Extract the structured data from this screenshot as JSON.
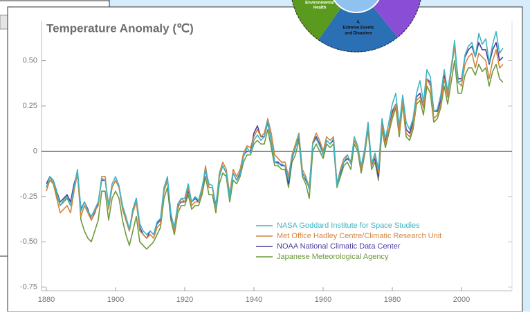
{
  "diagram": {
    "segment_left": [
      "Environmental",
      "Health"
    ],
    "segment_bottom": [
      "4.",
      "Extreme Events",
      "and Disasters"
    ]
  },
  "chart_data": {
    "type": "line",
    "title": "Temperature Anomaly (℃)",
    "x": [
      1880,
      1881,
      1882,
      1883,
      1884,
      1885,
      1886,
      1887,
      1888,
      1889,
      1890,
      1891,
      1892,
      1893,
      1894,
      1895,
      1896,
      1897,
      1898,
      1899,
      1900,
      1901,
      1902,
      1903,
      1904,
      1905,
      1906,
      1907,
      1908,
      1909,
      1910,
      1911,
      1912,
      1913,
      1914,
      1915,
      1916,
      1917,
      1918,
      1919,
      1920,
      1921,
      1922,
      1923,
      1924,
      1925,
      1926,
      1927,
      1928,
      1929,
      1930,
      1931,
      1932,
      1933,
      1934,
      1935,
      1936,
      1937,
      1938,
      1939,
      1940,
      1941,
      1942,
      1943,
      1944,
      1945,
      1946,
      1947,
      1948,
      1949,
      1950,
      1951,
      1952,
      1953,
      1954,
      1955,
      1956,
      1957,
      1958,
      1959,
      1960,
      1961,
      1962,
      1963,
      1964,
      1965,
      1966,
      1967,
      1968,
      1969,
      1970,
      1971,
      1972,
      1973,
      1974,
      1975,
      1976,
      1977,
      1978,
      1979,
      1980,
      1981,
      1982,
      1983,
      1984,
      1985,
      1986,
      1987,
      1988,
      1989,
      1990,
      1991,
      1992,
      1993,
      1994,
      1995,
      1996,
      1997,
      1998,
      1999,
      2000,
      2001,
      2002,
      2003,
      2004,
      2005,
      2006,
      2007,
      2008,
      2009,
      2010,
      2011,
      2012
    ],
    "series": [
      {
        "name": "NASA Goddard Institute for Space Studies",
        "color": "#3fb4c4",
        "values": [
          -0.2,
          -0.14,
          -0.16,
          -0.22,
          -0.3,
          -0.27,
          -0.25,
          -0.3,
          -0.2,
          -0.1,
          -0.33,
          -0.28,
          -0.33,
          -0.36,
          -0.32,
          -0.28,
          -0.15,
          -0.16,
          -0.3,
          -0.18,
          -0.14,
          -0.19,
          -0.3,
          -0.36,
          -0.43,
          -0.32,
          -0.26,
          -0.4,
          -0.44,
          -0.46,
          -0.44,
          -0.46,
          -0.39,
          -0.37,
          -0.2,
          -0.14,
          -0.35,
          -0.42,
          -0.29,
          -0.26,
          -0.26,
          -0.18,
          -0.28,
          -0.25,
          -0.27,
          -0.2,
          -0.1,
          -0.18,
          -0.19,
          -0.31,
          -0.14,
          -0.08,
          -0.12,
          -0.26,
          -0.12,
          -0.16,
          -0.13,
          -0.03,
          0.02,
          -0.01,
          0.06,
          0.09,
          0.06,
          0.08,
          0.17,
          0.06,
          -0.06,
          -0.07,
          -0.07,
          -0.08,
          -0.16,
          -0.03,
          0.02,
          0.09,
          -0.13,
          -0.15,
          -0.21,
          0.04,
          0.07,
          0.03,
          -0.02,
          0.06,
          0.04,
          0.07,
          -0.19,
          -0.11,
          -0.06,
          -0.02,
          -0.07,
          0.08,
          0.03,
          -0.08,
          0.01,
          0.16,
          -0.07,
          -0.01,
          -0.1,
          0.18,
          0.07,
          0.16,
          0.26,
          0.32,
          0.14,
          0.31,
          0.16,
          0.12,
          0.18,
          0.32,
          0.39,
          0.27,
          0.45,
          0.41,
          0.22,
          0.23,
          0.31,
          0.45,
          0.33,
          0.46,
          0.61,
          0.38,
          0.39,
          0.53,
          0.58,
          0.6,
          0.52,
          0.65,
          0.59,
          0.62,
          0.49,
          0.59,
          0.66,
          0.54,
          0.57
        ]
      },
      {
        "name": "Met Office Hadley Centre/Climatic Research Unit",
        "color": "#d4843c",
        "values": [
          -0.22,
          -0.16,
          -0.18,
          -0.26,
          -0.34,
          -0.32,
          -0.3,
          -0.34,
          -0.22,
          -0.12,
          -0.36,
          -0.3,
          -0.34,
          -0.38,
          -0.33,
          -0.3,
          -0.14,
          -0.14,
          -0.32,
          -0.2,
          -0.16,
          -0.2,
          -0.32,
          -0.38,
          -0.44,
          -0.34,
          -0.28,
          -0.44,
          -0.46,
          -0.48,
          -0.46,
          -0.48,
          -0.42,
          -0.4,
          -0.22,
          -0.16,
          -0.34,
          -0.44,
          -0.32,
          -0.26,
          -0.28,
          -0.2,
          -0.3,
          -0.28,
          -0.28,
          -0.22,
          -0.08,
          -0.2,
          -0.2,
          -0.32,
          -0.12,
          -0.06,
          -0.1,
          -0.24,
          -0.1,
          -0.14,
          -0.1,
          -0.01,
          0.03,
          0.02,
          0.08,
          0.12,
          0.08,
          0.1,
          0.18,
          0.1,
          -0.02,
          -0.04,
          -0.06,
          -0.06,
          -0.14,
          -0.02,
          0.04,
          0.1,
          -0.1,
          -0.14,
          -0.2,
          0.05,
          0.1,
          0.06,
          0.0,
          0.08,
          0.06,
          0.08,
          -0.18,
          -0.1,
          -0.04,
          -0.02,
          -0.06,
          0.06,
          0.02,
          -0.1,
          0.0,
          0.14,
          -0.08,
          -0.02,
          -0.12,
          0.14,
          0.04,
          0.12,
          0.2,
          0.26,
          0.1,
          0.28,
          0.1,
          0.08,
          0.14,
          0.28,
          0.3,
          0.24,
          0.4,
          0.36,
          0.18,
          0.2,
          0.26,
          0.4,
          0.3,
          0.44,
          0.58,
          0.38,
          0.36,
          0.48,
          0.52,
          0.54,
          0.46,
          0.54,
          0.52,
          0.5,
          0.4,
          0.5,
          0.56,
          0.46,
          0.48
        ]
      },
      {
        "name": "NOAA National Climatic Data Center",
        "color": "#4a3c9e",
        "values": [
          -0.18,
          -0.14,
          -0.16,
          -0.22,
          -0.28,
          -0.26,
          -0.24,
          -0.28,
          -0.18,
          -0.12,
          -0.32,
          -0.28,
          -0.32,
          -0.38,
          -0.34,
          -0.28,
          -0.16,
          -0.16,
          -0.3,
          -0.2,
          -0.16,
          -0.2,
          -0.3,
          -0.38,
          -0.44,
          -0.32,
          -0.26,
          -0.42,
          -0.46,
          -0.48,
          -0.44,
          -0.46,
          -0.4,
          -0.38,
          -0.22,
          -0.16,
          -0.36,
          -0.42,
          -0.3,
          -0.28,
          -0.28,
          -0.22,
          -0.28,
          -0.26,
          -0.28,
          -0.22,
          -0.1,
          -0.2,
          -0.2,
          -0.3,
          -0.14,
          -0.08,
          -0.12,
          -0.24,
          -0.12,
          -0.16,
          -0.12,
          -0.02,
          0.0,
          0.0,
          0.1,
          0.14,
          0.08,
          0.08,
          0.16,
          0.06,
          -0.06,
          -0.06,
          -0.08,
          -0.08,
          -0.18,
          -0.04,
          0.02,
          0.08,
          -0.12,
          -0.16,
          -0.2,
          0.04,
          0.08,
          0.04,
          -0.02,
          0.06,
          0.04,
          0.06,
          -0.18,
          -0.12,
          -0.06,
          -0.04,
          -0.06,
          0.06,
          0.02,
          -0.1,
          0.0,
          0.14,
          -0.08,
          -0.04,
          -0.14,
          0.16,
          0.06,
          0.12,
          0.22,
          0.26,
          0.12,
          0.3,
          0.12,
          0.1,
          0.16,
          0.3,
          0.32,
          0.24,
          0.4,
          0.38,
          0.22,
          0.22,
          0.28,
          0.42,
          0.3,
          0.46,
          0.58,
          0.4,
          0.4,
          0.52,
          0.56,
          0.58,
          0.52,
          0.6,
          0.56,
          0.56,
          0.48,
          0.56,
          0.6,
          0.5,
          0.52
        ]
      },
      {
        "name": "Japanese Meteorological Agency",
        "color": "#6b9a3c",
        "values": [
          -0.2,
          -0.14,
          -0.18,
          -0.24,
          -0.3,
          -0.28,
          -0.26,
          -0.3,
          -0.2,
          -0.12,
          -0.38,
          -0.44,
          -0.48,
          -0.5,
          -0.44,
          -0.38,
          -0.22,
          -0.22,
          -0.38,
          -0.26,
          -0.22,
          -0.26,
          -0.38,
          -0.46,
          -0.52,
          -0.44,
          -0.36,
          -0.5,
          -0.52,
          -0.54,
          -0.52,
          -0.5,
          -0.46,
          -0.42,
          -0.26,
          -0.2,
          -0.38,
          -0.46,
          -0.34,
          -0.3,
          -0.3,
          -0.24,
          -0.32,
          -0.3,
          -0.3,
          -0.24,
          -0.14,
          -0.24,
          -0.24,
          -0.34,
          -0.18,
          -0.12,
          -0.14,
          -0.28,
          -0.16,
          -0.18,
          -0.14,
          -0.06,
          -0.02,
          -0.02,
          0.04,
          0.06,
          0.04,
          0.04,
          0.12,
          0.02,
          -0.08,
          -0.08,
          -0.1,
          -0.1,
          -0.2,
          -0.06,
          -0.02,
          0.06,
          -0.14,
          -0.18,
          -0.26,
          0.0,
          0.04,
          0.0,
          -0.04,
          0.04,
          0.02,
          0.04,
          -0.2,
          -0.14,
          -0.08,
          -0.06,
          -0.1,
          0.04,
          0.0,
          -0.12,
          -0.02,
          0.12,
          -0.1,
          -0.06,
          -0.16,
          0.12,
          0.02,
          0.1,
          0.18,
          0.24,
          0.08,
          0.26,
          0.08,
          0.06,
          0.12,
          0.26,
          0.28,
          0.2,
          0.36,
          0.32,
          0.16,
          0.18,
          0.24,
          0.36,
          0.26,
          0.38,
          0.5,
          0.32,
          0.32,
          0.42,
          0.46,
          0.46,
          0.42,
          0.48,
          0.44,
          0.46,
          0.36,
          0.44,
          0.48,
          0.4,
          0.38
        ]
      }
    ],
    "xlim": [
      1878.6,
      2014.6
    ],
    "xticks": [
      1880,
      1900,
      1920,
      1940,
      1960,
      1980,
      2000
    ],
    "ylim": [
      -0.77,
      0.72
    ],
    "yticks": [
      -0.75,
      {
        "value": -0.5,
        "label": "-0.50"
      },
      -0.25,
      0,
      0.25,
      {
        "value": 0.5,
        "label": "0.50"
      }
    ],
    "zero_line": true,
    "legend": "lower right"
  }
}
